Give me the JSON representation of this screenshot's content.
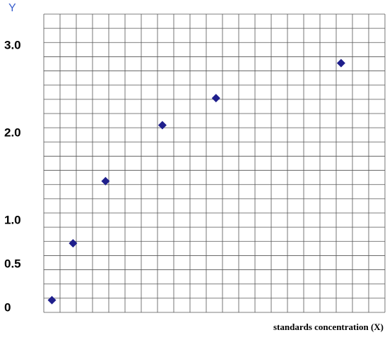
{
  "chart_data": {
    "type": "scatter",
    "y_label": "Y",
    "x_label": "standards concentration (X)",
    "x": [
      0.5,
      1.8,
      3.8,
      7.3,
      10.6,
      18.3
    ],
    "values": [
      0.06,
      0.71,
      1.42,
      2.06,
      2.37,
      2.77
    ],
    "color": "#1f1f8c",
    "xlim": [
      0,
      21
    ],
    "ylim": [
      -0.08,
      3.33
    ],
    "yticks": [
      0,
      0.5,
      {
        "value": 1,
        "label": "1.0"
      },
      {
        "value": 2,
        "label": "2.0"
      },
      {
        "value": 3,
        "label": "3.0"
      }
    ],
    "grid": true
  }
}
